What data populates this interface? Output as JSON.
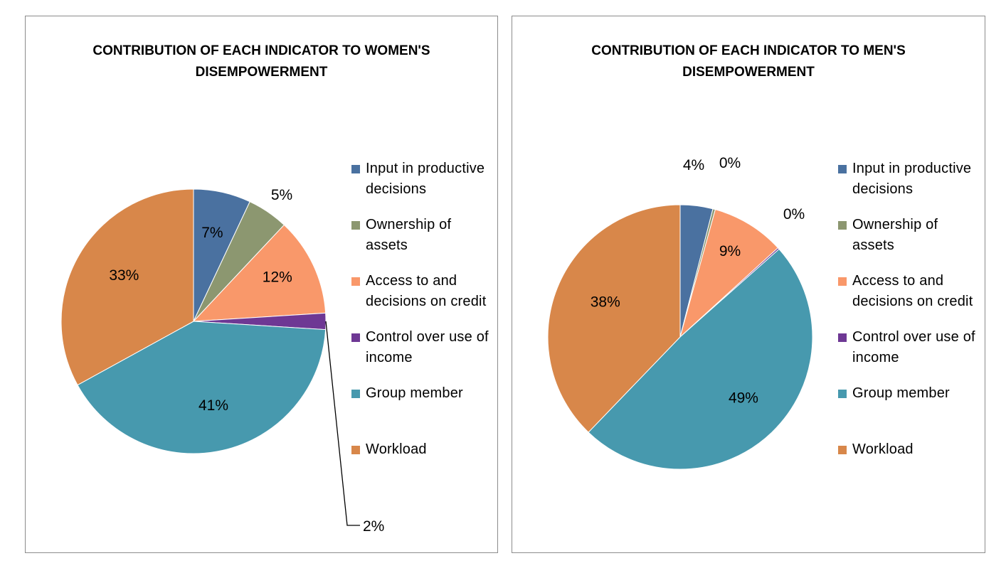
{
  "chart_data": [
    {
      "type": "pie",
      "title": "CONTRIBUTION OF EACH INDICATOR TO WOMEN'S DISEMPOWERMENT",
      "legend": "right",
      "categories": [
        "Input in productive decisions",
        "Ownership of assets",
        "Access to and decisions on credit",
        "Control over use of income",
        "Group member",
        "Workload"
      ],
      "values": [
        7,
        5,
        12,
        2,
        41,
        33
      ],
      "labels": [
        "7%",
        "5%",
        "12%",
        "2%",
        "41%",
        "33%"
      ],
      "colors": [
        "#4A71A0",
        "#8C9770",
        "#F9986A",
        "#6E3894",
        "#4799AE",
        "#D8874A"
      ]
    },
    {
      "type": "pie",
      "title": "CONTRIBUTION OF EACH INDICATOR TO MEN'S DISEMPOWERMENT",
      "legend": "right",
      "categories": [
        "Input in productive decisions",
        "Ownership of assets",
        "Access to and decisions on credit",
        "Control over use of income",
        "Group member",
        "Workload"
      ],
      "values": [
        4,
        0.3,
        9,
        0.2,
        49,
        38
      ],
      "labels": [
        "4%",
        "0%",
        "9%",
        "0%",
        "49%",
        "38%"
      ],
      "colors": [
        "#4A71A0",
        "#8C9770",
        "#F9986A",
        "#6E3894",
        "#4799AE",
        "#D8874A"
      ]
    }
  ],
  "legend_items": [
    {
      "label": "Input in productive decisions",
      "color": "#4A71A0"
    },
    {
      "label": "Ownership of assets",
      "color": "#8C9770"
    },
    {
      "label": "Access to and decisions on credit",
      "color": "#F9986A"
    },
    {
      "label": "Control over use of income",
      "color": "#6E3894"
    },
    {
      "label": "Group member",
      "color": "#4799AE"
    },
    {
      "label": "Workload",
      "color": "#D8874A"
    }
  ]
}
